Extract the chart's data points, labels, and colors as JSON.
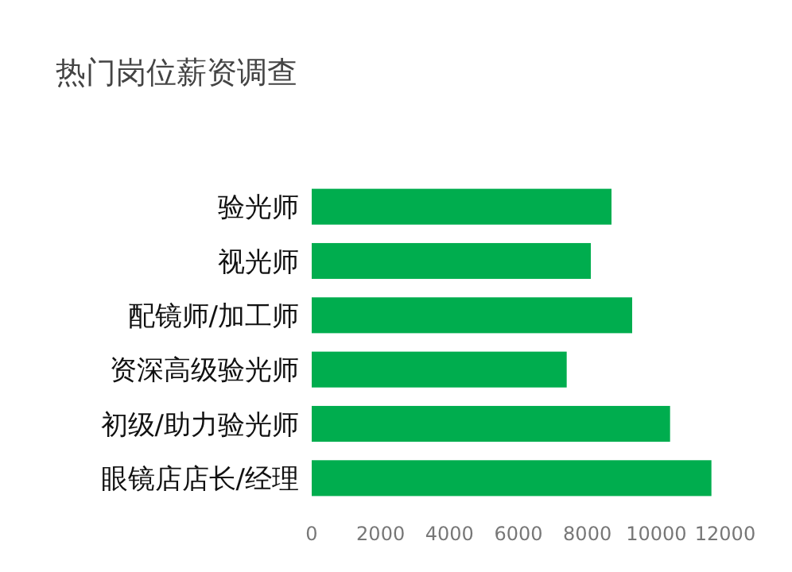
{
  "chart_data": {
    "type": "bar",
    "orientation": "horizontal",
    "title": "热门岗位薪资调查",
    "categories": [
      "验光师",
      "视光师",
      "配镜师/加工师",
      "资深高级验光师",
      "初级/助力验光师",
      "眼镜店店长/经理"
    ],
    "values": [
      8700,
      8100,
      9300,
      7400,
      10400,
      11600
    ],
    "color": "#00ad4e",
    "xlim": [
      0,
      12000
    ],
    "xticks": [
      0,
      2000,
      4000,
      6000,
      8000,
      10000,
      12000
    ],
    "grid": false
  }
}
